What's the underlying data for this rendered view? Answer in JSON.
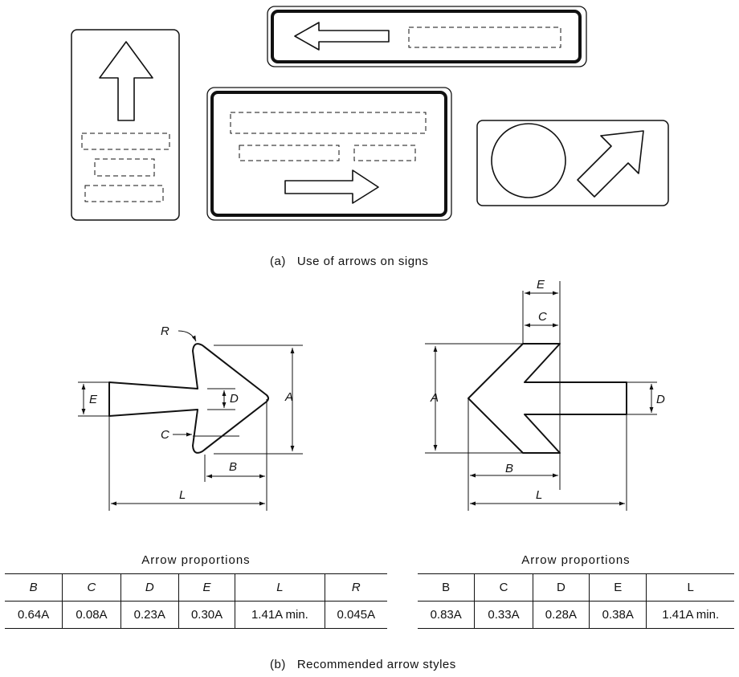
{
  "caption_a": "(a)   Use of arrows on signs",
  "caption_b": "(b)   Recommended arrow styles",
  "dimension_labels": {
    "left": {
      "R": "R",
      "E": "E",
      "D": "D",
      "A": "A",
      "C": "C",
      "B": "B",
      "L": "L"
    },
    "right": {
      "E": "E",
      "C": "C",
      "A": "A",
      "D": "D",
      "B": "B",
      "L": "L"
    }
  },
  "table_left": {
    "title": "Arrow  proportions",
    "headers": [
      "B",
      "C",
      "D",
      "E",
      "L",
      "R"
    ],
    "values": [
      "0.64A",
      "0.08A",
      "0.23A",
      "0.30A",
      "1.41A min.",
      "0.045A"
    ]
  },
  "table_right": {
    "title": "Arrow  proportions",
    "headers": [
      "B",
      "C",
      "D",
      "E",
      "L"
    ],
    "values": [
      "0.83A",
      "0.33A",
      "0.28A",
      "0.38A",
      "1.41A min."
    ]
  }
}
